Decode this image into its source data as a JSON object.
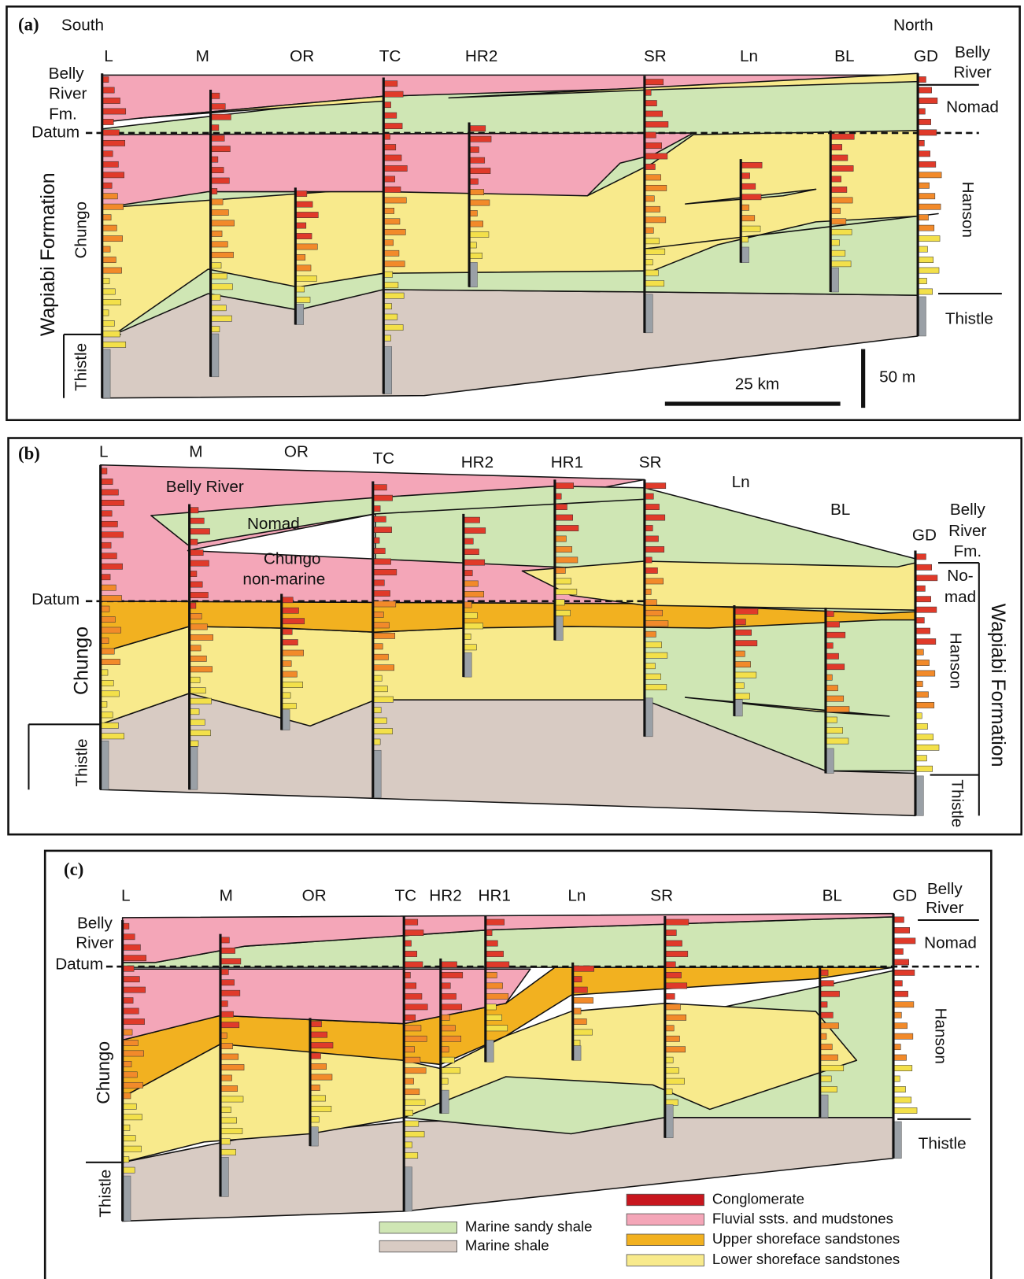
{
  "panels": [
    {
      "label": "(a)",
      "wells": [
        "L",
        "M",
        "OR",
        "TC",
        "HR2",
        "SR",
        "Ln",
        "BL",
        "GD"
      ],
      "labels": [
        "South",
        "North",
        "Belly",
        "River",
        "Fm.",
        "Datum",
        "Chungo",
        "Wapiabi Formation",
        "Thistle",
        "Belly",
        "River",
        "Nomad",
        "Hanson",
        "Thistle",
        "25 km",
        "50 m"
      ]
    },
    {
      "label": "(b)",
      "wells": [
        "L",
        "M",
        "OR",
        "TC",
        "HR2",
        "HR1",
        "SR",
        "Ln",
        "BL",
        "GD"
      ],
      "labels": [
        "Belly River",
        "Nomad",
        "Chungo",
        "non-marine",
        "Datum",
        "Belly",
        "River",
        "Fm.",
        "No-",
        "mad",
        "Wapiabi Formation",
        "Hanson",
        "Chungo",
        "Thistle",
        "Thistle"
      ]
    },
    {
      "label": "(c)",
      "wells": [
        "L",
        "M",
        "OR",
        "TC",
        "HR2",
        "HR1",
        "Ln",
        "SR",
        "BL",
        "GD"
      ],
      "labels": [
        "Belly",
        "River",
        "Belly",
        "River",
        "Datum",
        "Nomad",
        "Hanson",
        "Thistle",
        "Chungo",
        "Thistle"
      ]
    }
  ],
  "legend": [
    {
      "label": "Conglomerate",
      "color": "#c8161e"
    },
    {
      "label": "Fluvial ssts. and mudstones",
      "color": "#f4a6b8"
    },
    {
      "label": "Upper shoreface sandstones",
      "color": "#f2b120"
    },
    {
      "label": "Lower shoreface sandstones",
      "color": "#f8ea8c"
    },
    {
      "label": "Marine sandy shale",
      "color": "#cfe6b4"
    },
    {
      "label": "Marine shale",
      "color": "#d8cbc3"
    }
  ]
}
